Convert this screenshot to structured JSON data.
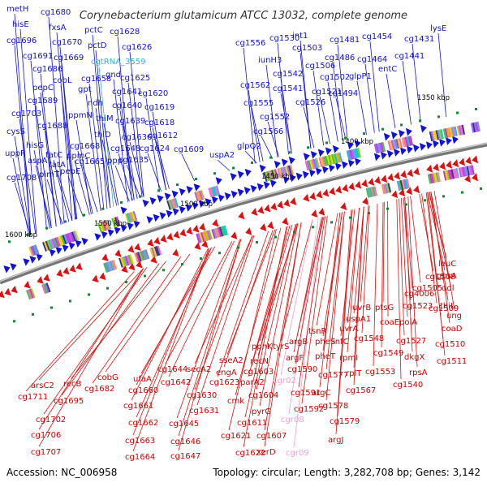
{
  "title": "Corynebacterium glutamicum ATCC 13032, complete genome",
  "footer": {
    "accession": "Accession: NC_006958",
    "summary": "Topology: circular; Length: 3,282,708 bp; Genes: 3,142"
  },
  "colors": {
    "forward": "#1111dd",
    "reverse": "#dd1111",
    "rna_fwd": "#33b5cc",
    "rna_rev": "#f0a0d0",
    "backbone": "#777777",
    "tick": "#000000"
  },
  "scale_marks": [
    "1600 kbp",
    "1550 kbp",
    "1500 kbp",
    "1450 kbp",
    "1400 kbp",
    "1350 kbp"
  ],
  "genes_top": [
    "metH",
    "cg1680",
    "hisE",
    "fxsA",
    "cg1696",
    "cg1670",
    "pctC",
    "cg1628",
    "cg1691",
    "cg1669",
    "pctD",
    "cg1626",
    "cg1686",
    "cgtRNA_3559",
    "cobL",
    "cg1658",
    "gnd",
    "cg1625",
    "pepC",
    "cg1689",
    "gpt",
    "cg1641",
    "cg1620",
    "cg1703",
    "ppmN",
    "ndh",
    "cg1640",
    "cg1619",
    "cg1688",
    "thiM",
    "cg1639",
    "cg1618",
    "cysS",
    "hisG",
    "cg1668",
    "thiD",
    "cg1636",
    "cg1612",
    "tatA",
    "ppmC",
    "cg1648",
    "cg1624",
    "aspA",
    "tatC",
    "ppp",
    "cg1609",
    "uppP",
    "pimT",
    "cg1665",
    "cg1635",
    "cg1708",
    "pepE",
    "uspA2",
    "glpQ2",
    "cg1566",
    "cg1562",
    "cg1555",
    "cg1552",
    "iunH3",
    "cg1542",
    "cg1541",
    "cg1526",
    "cg1556",
    "cg1530",
    "int1",
    "cg1503",
    "cg1506",
    "cg1502",
    "cg1521",
    "cg1494",
    "cg1481",
    "cg1486",
    "cg1454",
    "cg1464",
    "glpP1",
    "entC",
    "cg1431",
    "cg1441",
    "lysE"
  ],
  "genes_bottom": [
    "arsC2",
    "cg1711",
    "recB",
    "cg1695",
    "cobG",
    "cg1682",
    "ufaA",
    "cg1660",
    "cg1661",
    "cg1662",
    "cg1663",
    "cg1664",
    "cg1702",
    "cg1706",
    "cg1707",
    "cg1644",
    "cg1642",
    "cg1645",
    "cg1646",
    "cg1647",
    "secA2",
    "cg1630",
    "cg1631",
    "sseA2",
    "engA",
    "cg1623",
    "cmk",
    "parA2",
    "cg1604",
    "cg1611",
    "cg1621",
    "cg1622",
    "ppnK",
    "recN",
    "cg1603",
    "pyrG",
    "cg1607",
    "xerD",
    "tyrS",
    "cgr02",
    "cgr08",
    "cgr09",
    "argB",
    "argF",
    "cg1590",
    "cg1591",
    "cg1592",
    "argC",
    "cg1578",
    "cg1579",
    "argJ",
    "tsnR",
    "pheS",
    "pheT",
    "cg1577",
    "rpmI",
    "infC",
    "uvrA",
    "cg1567",
    "rplT",
    "cg1553",
    "cg1548",
    "uvrB",
    "uspA1",
    "ptsG",
    "cg1523",
    "cg4006",
    "cg1505",
    "cg1508",
    "gpsA",
    "leuC",
    "ddl",
    "thiL",
    "ung",
    "coaD",
    "cg1509",
    "polA",
    "coaE",
    "cg1527",
    "cg1549",
    "dkgX",
    "rpsA",
    "cg1540",
    "cg1510",
    "cg1511"
  ]
}
